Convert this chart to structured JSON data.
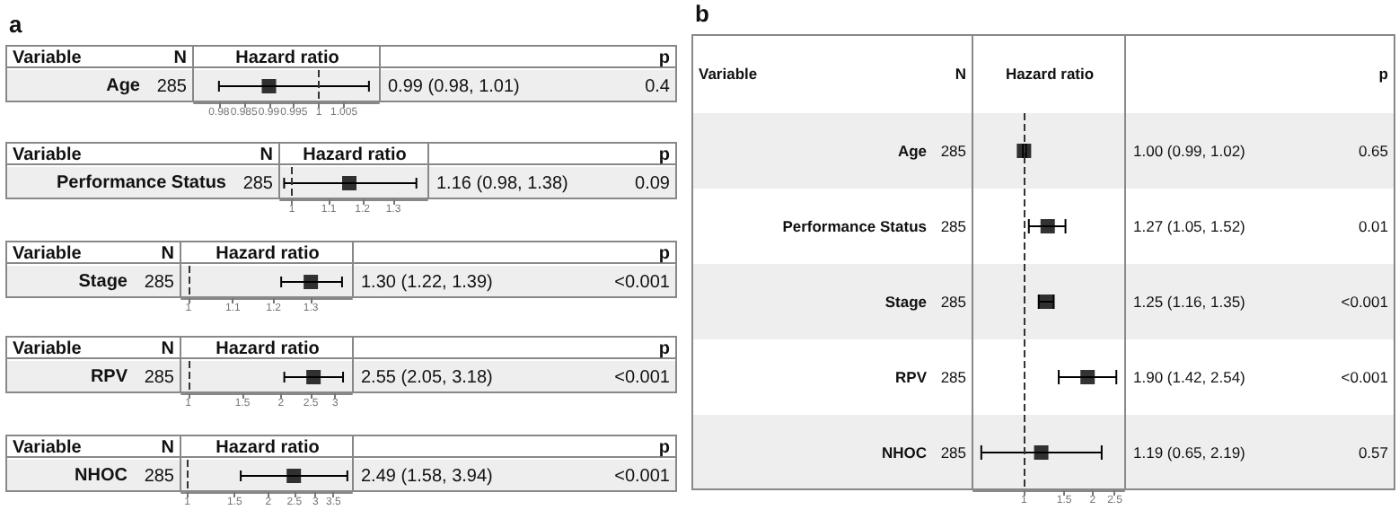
{
  "chart_data": [
    {
      "type": "scatter",
      "title": "a",
      "xlabel": "Hazard ratio",
      "categories": [
        "Age"
      ],
      "values": [
        0.99
      ],
      "errors": [
        [
          0.98,
          1.01
        ]
      ],
      "orientation": "horizontal",
      "color": "#000000",
      "marker": "square",
      "xlim": [
        0.975,
        1.012
      ],
      "xticks": [
        0.98,
        0.985,
        0.99,
        0.995,
        1,
        1.005
      ],
      "ref_lines": [
        {
          "axis": "x",
          "value": 1,
          "line_style": "dashed"
        }
      ],
      "annotations": [
        "Variable",
        "N",
        "p",
        "285",
        "0.99 (0.98, 1.01)",
        "0.4"
      ]
    },
    {
      "type": "scatter",
      "xlabel": "Hazard ratio",
      "categories": [
        "Performance Status"
      ],
      "values": [
        1.16
      ],
      "errors": [
        [
          0.98,
          1.38
        ]
      ],
      "orientation": "horizontal",
      "color": "#000000",
      "marker": "square",
      "log": "x",
      "xlim": [
        0.97,
        1.42
      ],
      "xticks": [
        1,
        1.1,
        1.2,
        1.3
      ],
      "ref_lines": [
        {
          "axis": "x",
          "value": 1,
          "line_style": "dashed"
        }
      ],
      "annotations": [
        "Variable",
        "N",
        "p",
        "285",
        "1.16 (0.98, 1.38)",
        "0.09"
      ]
    },
    {
      "type": "scatter",
      "xlabel": "Hazard ratio",
      "categories": [
        "Stage"
      ],
      "values": [
        1.3
      ],
      "errors": [
        [
          1.22,
          1.39
        ]
      ],
      "orientation": "horizontal",
      "color": "#000000",
      "marker": "square",
      "log": "x",
      "xlim": [
        0.985,
        1.42
      ],
      "xticks": [
        1,
        1.1,
        1.2,
        1.3
      ],
      "ref_lines": [
        {
          "axis": "x",
          "value": 1,
          "line_style": "dashed"
        }
      ],
      "annotations": [
        "Variable",
        "N",
        "p",
        "285",
        "1.30 (1.22, 1.39)",
        "<0.001"
      ]
    },
    {
      "type": "scatter",
      "xlabel": "Hazard ratio",
      "categories": [
        "RPV"
      ],
      "values": [
        2.55
      ],
      "errors": [
        [
          2.05,
          3.18
        ]
      ],
      "orientation": "horizontal",
      "color": "#000000",
      "marker": "square",
      "log": "x",
      "xlim": [
        0.95,
        3.4
      ],
      "xticks": [
        1,
        1.5,
        2,
        2.5,
        3
      ],
      "ref_lines": [
        {
          "axis": "x",
          "value": 1,
          "line_style": "dashed"
        }
      ],
      "annotations": [
        "Variable",
        "N",
        "p",
        "285",
        "2.55 (2.05, 3.18)",
        "<0.001"
      ]
    },
    {
      "type": "scatter",
      "xlabel": "Hazard ratio",
      "categories": [
        "NHOC"
      ],
      "values": [
        2.49
      ],
      "errors": [
        [
          1.58,
          3.94
        ]
      ],
      "orientation": "horizontal",
      "color": "#000000",
      "marker": "square",
      "log": "x",
      "xlim": [
        0.95,
        4.1
      ],
      "xticks": [
        1,
        1.5,
        2,
        2.5,
        3,
        3.5
      ],
      "ref_lines": [
        {
          "axis": "x",
          "value": 1,
          "line_style": "dashed"
        }
      ],
      "annotations": [
        "Variable",
        "N",
        "p",
        "285",
        "2.49 (1.58, 3.94)",
        "<0.001"
      ]
    },
    {
      "type": "scatter",
      "title": "b",
      "xlabel": "Hazard ratio",
      "categories": [
        "Age",
        "Performance Status",
        "Stage",
        "RPV",
        "NHOC"
      ],
      "values": [
        1.0,
        1.27,
        1.25,
        1.9,
        1.19
      ],
      "errors": [
        [
          0.99,
          1.02
        ],
        [
          1.05,
          1.52
        ],
        [
          1.16,
          1.35
        ],
        [
          1.42,
          2.54
        ],
        [
          0.65,
          2.19
        ]
      ],
      "orientation": "horizontal",
      "color": "#000000",
      "marker": "square",
      "log": "x",
      "xlim": [
        0.6,
        2.75
      ],
      "xticks": [
        1,
        1.5,
        2,
        2.5
      ],
      "ref_lines": [
        {
          "axis": "x",
          "value": 1,
          "line_style": "dashed"
        }
      ],
      "annotations": [
        "Variable",
        "N",
        "p",
        "285",
        "1.00 (0.99, 1.02)",
        "0.65",
        "285",
        "1.27 (1.05, 1.52)",
        "0.01",
        "285",
        "1.25 (1.16, 1.35)",
        "<0.001",
        "285",
        "1.90 (1.42, 2.54)",
        "<0.001",
        "285",
        "1.19 (0.65, 2.19)",
        "0.57"
      ]
    }
  ]
}
